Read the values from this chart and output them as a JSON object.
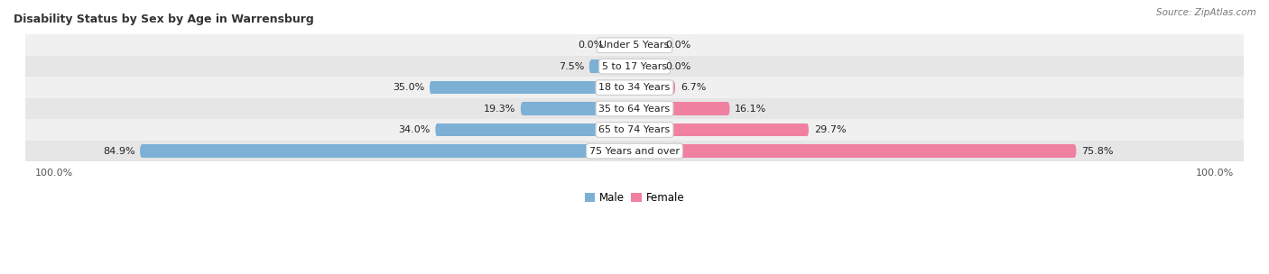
{
  "title": "Disability Status by Sex by Age in Warrensburg",
  "source": "Source: ZipAtlas.com",
  "categories": [
    "Under 5 Years",
    "5 to 17 Years",
    "18 to 34 Years",
    "35 to 64 Years",
    "65 to 74 Years",
    "75 Years and over"
  ],
  "male_values": [
    0.0,
    7.5,
    35.0,
    19.3,
    34.0,
    84.9
  ],
  "female_values": [
    0.0,
    0.0,
    6.7,
    16.1,
    29.7,
    75.8
  ],
  "male_color": "#7db0d5",
  "female_color": "#f080a0",
  "male_color_light": "#aecde6",
  "female_color_light": "#f8b4c8",
  "row_bg_even": "#f0f0f0",
  "row_bg_odd": "#e6e6e6",
  "label_color": "#222222",
  "title_color": "#333333",
  "source_color": "#777777",
  "max_value": 100.0,
  "bar_height": 0.62,
  "figsize": [
    14.06,
    3.04
  ],
  "dpi": 100
}
